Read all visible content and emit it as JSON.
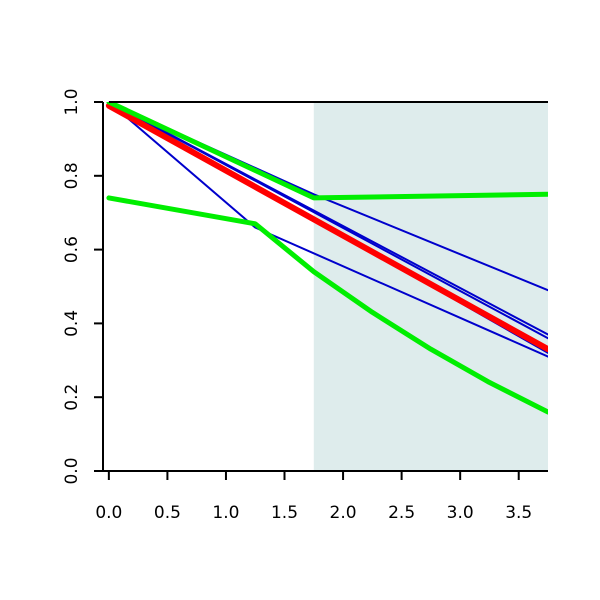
{
  "chart_data": {
    "type": "line",
    "title": "",
    "xlabel": "",
    "ylabel": "",
    "xlim": [
      -0.05,
      3.75
    ],
    "ylim": [
      0.0,
      1.0
    ],
    "grid": false,
    "x_ticks": [
      {
        "value": 0.0,
        "label": "0.0"
      },
      {
        "value": 0.5,
        "label": "0.5"
      },
      {
        "value": 1.0,
        "label": "1.0"
      },
      {
        "value": 1.5,
        "label": "1.5"
      },
      {
        "value": 2.0,
        "label": "2.0"
      },
      {
        "value": 2.5,
        "label": "2.5"
      },
      {
        "value": 3.0,
        "label": "3.0"
      },
      {
        "value": 3.5,
        "label": "3.5"
      }
    ],
    "y_ticks": [
      {
        "value": 0.0,
        "label": "0.0"
      },
      {
        "value": 0.2,
        "label": "0.2"
      },
      {
        "value": 0.4,
        "label": "0.4"
      },
      {
        "value": 0.6,
        "label": "0.6"
      },
      {
        "value": 0.8,
        "label": "0.8"
      },
      {
        "value": 1.0,
        "label": "1.0"
      }
    ],
    "shaded_region": {
      "x_start": 1.75,
      "x_end": 3.75,
      "color": "#deecec"
    },
    "colors": {
      "blue": "#0000cc",
      "red": "#ff0000",
      "green": "#00ee00"
    },
    "series": [
      {
        "color": "#0000cc",
        "width": "thin",
        "points": [
          [
            0.0,
            1.0
          ],
          [
            1.75,
            0.75
          ],
          [
            3.75,
            0.49
          ]
        ]
      },
      {
        "color": "#0000cc",
        "width": "thin",
        "points": [
          [
            0.0,
            1.0
          ],
          [
            3.75,
            0.37
          ]
        ]
      },
      {
        "color": "#0000cc",
        "width": "thin",
        "points": [
          [
            0.0,
            1.0
          ],
          [
            3.75,
            0.36
          ]
        ]
      },
      {
        "color": "#0000cc",
        "width": "thin",
        "points": [
          [
            0.0,
            1.0
          ],
          [
            3.75,
            0.32
          ]
        ]
      },
      {
        "color": "#0000cc",
        "width": "thin",
        "points": [
          [
            0.0,
            1.0
          ],
          [
            1.25,
            0.66
          ],
          [
            3.75,
            0.31
          ]
        ]
      },
      {
        "color": "#ff0000",
        "width": "thick",
        "points": [
          [
            0.0,
            0.99
          ],
          [
            3.75,
            0.33
          ]
        ]
      },
      {
        "color": "#00ee00",
        "width": "thick",
        "points": [
          [
            0.0,
            1.0
          ],
          [
            1.75,
            0.74
          ],
          [
            3.75,
            0.75
          ]
        ]
      },
      {
        "color": "#00ee00",
        "width": "thick",
        "points": [
          [
            0.0,
            0.74
          ],
          [
            1.25,
            0.67
          ],
          [
            1.75,
            0.54
          ],
          [
            2.25,
            0.43
          ],
          [
            2.75,
            0.33
          ],
          [
            3.25,
            0.24
          ],
          [
            3.75,
            0.16
          ]
        ]
      }
    ]
  }
}
